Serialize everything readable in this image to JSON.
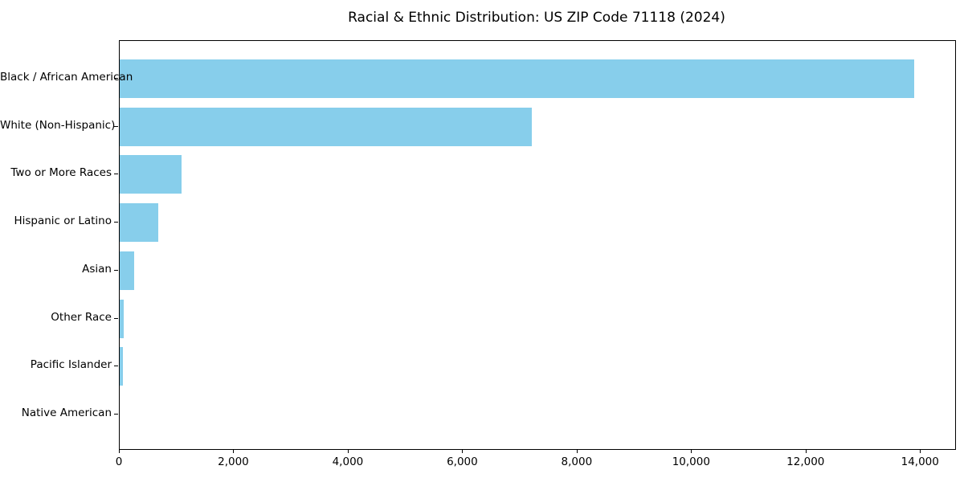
{
  "chart_data": {
    "type": "bar",
    "orientation": "horizontal",
    "title": "Racial & Ethnic Distribution: US ZIP Code 71118 (2024)",
    "categories": [
      "Black / African American",
      "White (Non-Hispanic)",
      "Two or More Races",
      "Hispanic or Latino",
      "Asian",
      "Other Race",
      "Pacific Islander",
      "Native American"
    ],
    "values": [
      13880,
      7200,
      1080,
      675,
      250,
      75,
      55,
      0
    ],
    "xlabel": "",
    "ylabel": "",
    "xlim": [
      0,
      14600
    ],
    "x_ticks": [
      {
        "value": 0,
        "label": "0"
      },
      {
        "value": 2000,
        "label": "2,000"
      },
      {
        "value": 4000,
        "label": "4,000"
      },
      {
        "value": 6000,
        "label": "6,000"
      },
      {
        "value": 8000,
        "label": "8,000"
      },
      {
        "value": 10000,
        "label": "10,000"
      },
      {
        "value": 12000,
        "label": "12,000"
      },
      {
        "value": 14000,
        "label": "14,000"
      }
    ],
    "grid": false,
    "legend": null,
    "bar_color": "#87CEEB",
    "background_color": "#ffffff",
    "spine_color": "#000000"
  }
}
